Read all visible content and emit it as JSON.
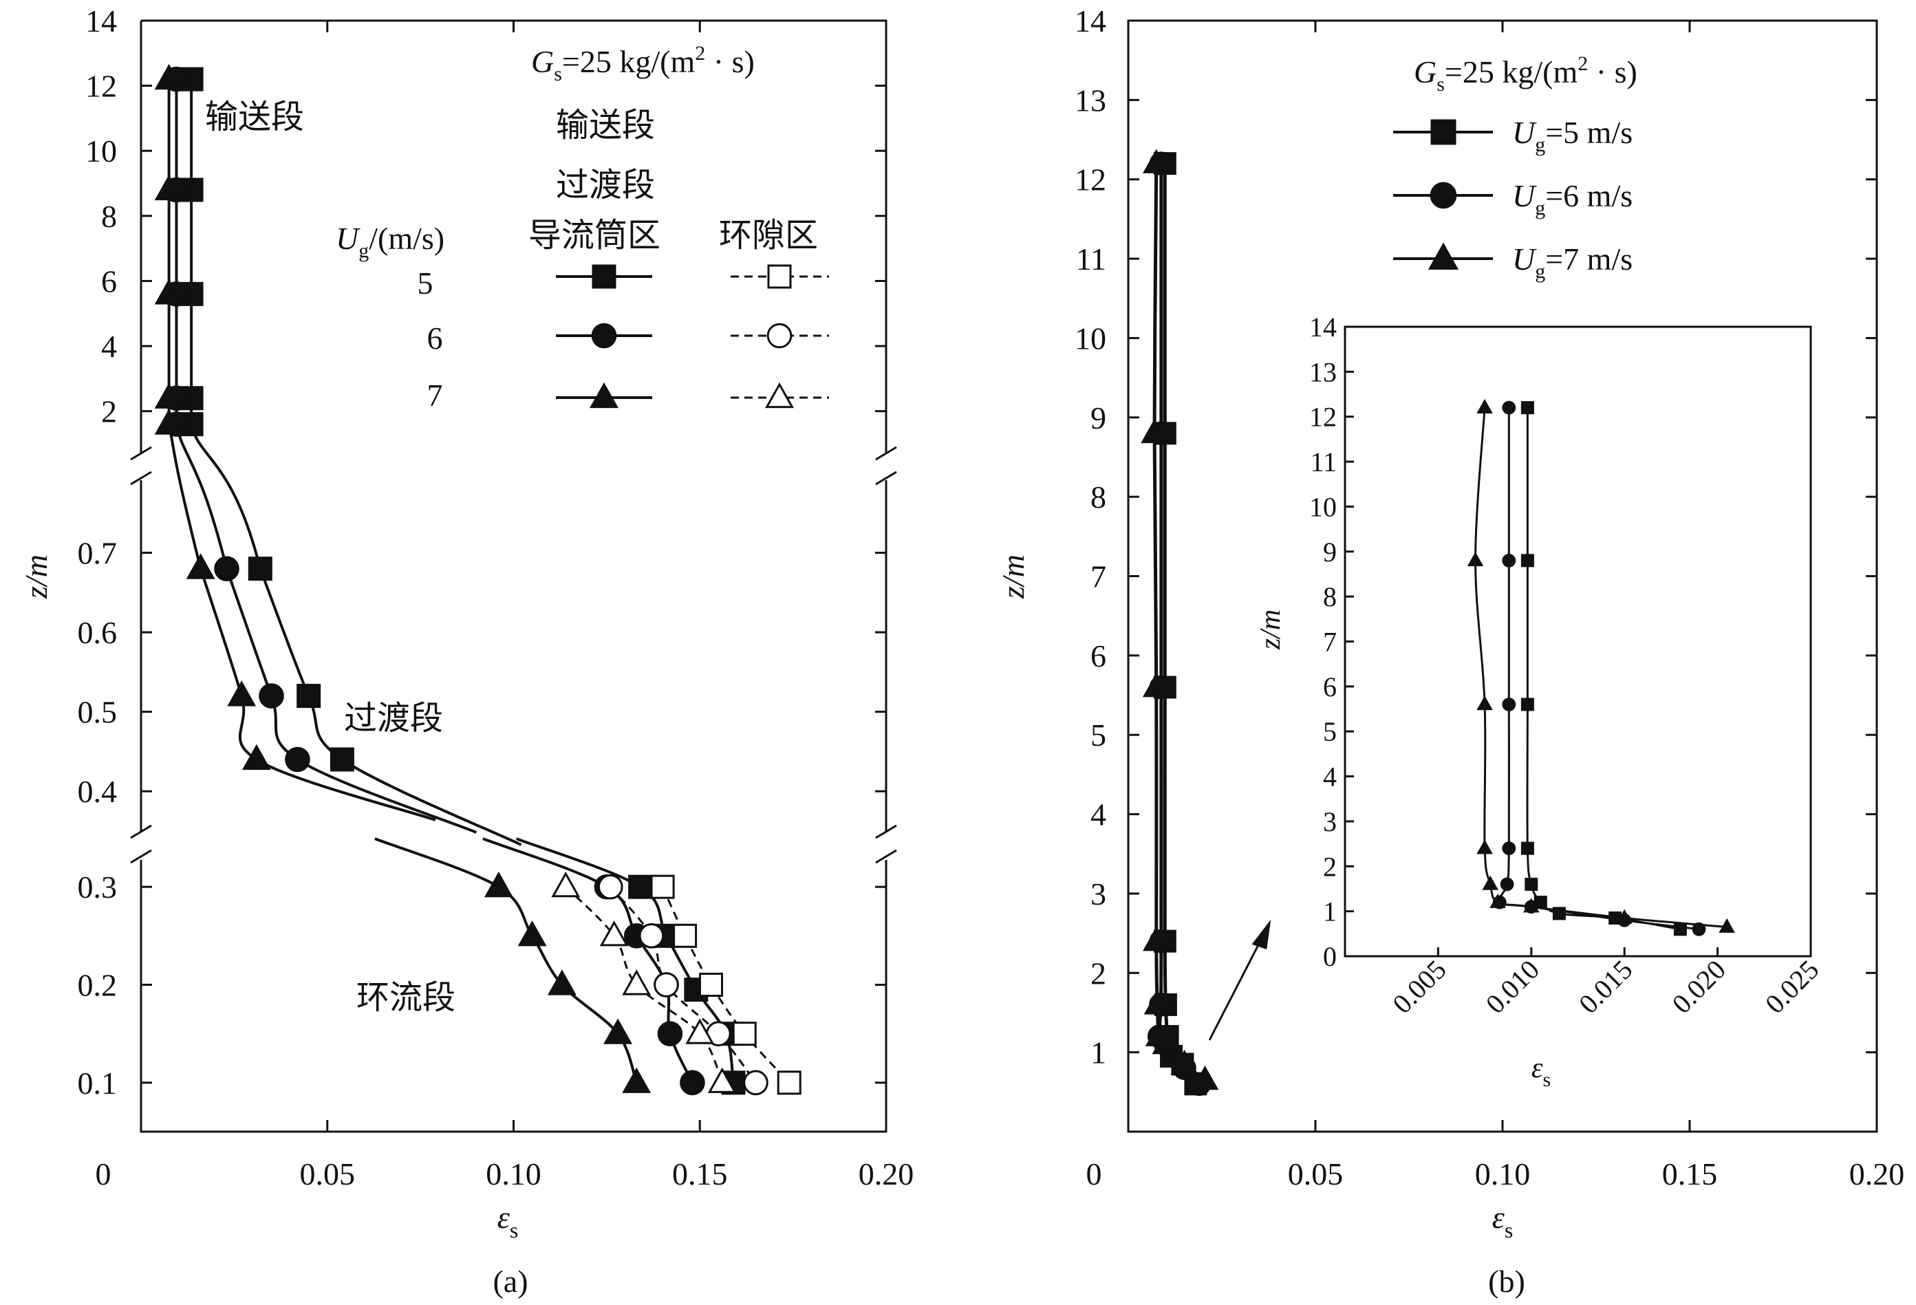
{
  "chart_data": [
    {
      "panel": "a",
      "type": "line",
      "caption": "(a)",
      "xlabel_sym": "ε",
      "xlabel_sub": "s",
      "ylabel": "z/m",
      "xlim": [
        0,
        0.2
      ],
      "x_ticks": [
        "0",
        "0.05",
        "0.10",
        "0.15",
        "0.20"
      ],
      "y_axis_broken": true,
      "y_segments": [
        {
          "range": [
            1,
            14
          ],
          "ticks": [
            "2",
            "4",
            "6",
            "8",
            "10",
            "12",
            "14"
          ]
        },
        {
          "range": [
            0.35,
            0.8
          ],
          "ticks": [
            "0.4",
            "0.5",
            "0.6",
            "0.7"
          ]
        },
        {
          "range": [
            0.05,
            0.35
          ],
          "ticks": [
            "0.1",
            "0.2",
            "0.3"
          ]
        }
      ],
      "annotations": {
        "conveying": "输送段",
        "transition": "过渡段",
        "circulation": "环流段"
      },
      "legend": {
        "condition_prefix": "G",
        "condition_sub": "s",
        "condition_value": "=25 kg/(m",
        "condition_sup": "2",
        "condition_tail": " · s)",
        "title_line1": "输送段",
        "title_line2": "过渡段",
        "ug_header": "U",
        "ug_sub": "g",
        "ug_unit": "/(m/s)",
        "col_draft": "导流筒区",
        "col_annulus": "环隙区",
        "velocities": [
          "5",
          "6",
          "7"
        ]
      },
      "series": [
        {
          "name": "5 m/s draft tube",
          "marker": "square",
          "filled": true,
          "points": [
            [
              0.0135,
              12.2
            ],
            [
              0.0135,
              8.8
            ],
            [
              0.0135,
              5.6
            ],
            [
              0.0135,
              2.4
            ],
            [
              0.0135,
              1.6
            ],
            [
              0.032,
              0.68
            ],
            [
              0.045,
              0.52
            ],
            [
              0.054,
              0.44
            ],
            [
              0.134,
              0.3
            ],
            [
              0.141,
              0.25
            ],
            [
              0.149,
              0.195
            ],
            [
              0.157,
              0.15
            ],
            [
              0.159,
              0.1
            ]
          ]
        },
        {
          "name": "6 m/s draft tube",
          "marker": "circle",
          "filled": true,
          "points": [
            [
              0.0095,
              12.2
            ],
            [
              0.0095,
              8.8
            ],
            [
              0.0095,
              5.6
            ],
            [
              0.0095,
              2.4
            ],
            [
              0.0095,
              1.6
            ],
            [
              0.023,
              0.68
            ],
            [
              0.035,
              0.52
            ],
            [
              0.042,
              0.44
            ],
            [
              0.125,
              0.3
            ],
            [
              0.133,
              0.25
            ],
            [
              0.141,
              0.2
            ],
            [
              0.142,
              0.15
            ],
            [
              0.148,
              0.1
            ]
          ]
        },
        {
          "name": "7 m/s draft tube",
          "marker": "triangle",
          "filled": true,
          "points": [
            [
              0.0075,
              12.2
            ],
            [
              0.0075,
              8.8
            ],
            [
              0.0075,
              5.6
            ],
            [
              0.0075,
              2.4
            ],
            [
              0.0075,
              1.6
            ],
            [
              0.016,
              0.68
            ],
            [
              0.027,
              0.52
            ],
            [
              0.031,
              0.44
            ],
            [
              0.096,
              0.3
            ],
            [
              0.105,
              0.25
            ],
            [
              0.113,
              0.2
            ],
            [
              0.128,
              0.15
            ],
            [
              0.133,
              0.1
            ]
          ]
        },
        {
          "name": "5 m/s annulus",
          "marker": "square",
          "filled": false,
          "points": [
            [
              0.14,
              0.3
            ],
            [
              0.146,
              0.25
            ],
            [
              0.153,
              0.2
            ],
            [
              0.162,
              0.15
            ],
            [
              0.174,
              0.1
            ]
          ]
        },
        {
          "name": "6 m/s annulus",
          "marker": "circle",
          "filled": false,
          "points": [
            [
              0.126,
              0.3
            ],
            [
              0.137,
              0.25
            ],
            [
              0.141,
              0.2
            ],
            [
              0.155,
              0.15
            ],
            [
              0.165,
              0.1
            ]
          ]
        },
        {
          "name": "7 m/s annulus",
          "marker": "triangle",
          "filled": false,
          "points": [
            [
              0.114,
              0.3
            ],
            [
              0.127,
              0.25
            ],
            [
              0.133,
              0.2
            ],
            [
              0.15,
              0.15
            ],
            [
              0.156,
              0.1
            ]
          ]
        }
      ]
    },
    {
      "panel": "b",
      "type": "line",
      "caption": "(b)",
      "xlabel_sym": "ε",
      "xlabel_sub": "s",
      "ylabel": "z/m",
      "xlim": [
        0,
        0.2
      ],
      "ylim": [
        0,
        14
      ],
      "x_ticks": [
        "0",
        "0.05",
        "0.10",
        "0.15",
        "0.20"
      ],
      "y_ticks": [
        "1",
        "2",
        "3",
        "4",
        "5",
        "6",
        "7",
        "8",
        "9",
        "10",
        "11",
        "12",
        "13",
        "14"
      ],
      "legend": {
        "condition_prefix": "G",
        "condition_sub": "s",
        "condition_value": "=25 kg/(m",
        "condition_sup": "2",
        "condition_tail": " · s)",
        "entries": [
          {
            "prefix": "U",
            "sub": "g",
            "value": "=5 m/s",
            "marker": "square"
          },
          {
            "prefix": "U",
            "sub": "g",
            "value": "=6 m/s",
            "marker": "circle"
          },
          {
            "prefix": "U",
            "sub": "g",
            "value": "=7 m/s",
            "marker": "triangle"
          }
        ]
      },
      "series": [
        {
          "name": "Ug=5 m/s",
          "marker": "square",
          "points": [
            [
              0.0098,
              12.2
            ],
            [
              0.0098,
              8.8
            ],
            [
              0.0098,
              5.6
            ],
            [
              0.0098,
              2.4
            ],
            [
              0.01,
              1.6
            ],
            [
              0.0105,
              1.2
            ],
            [
              0.0115,
              0.95
            ],
            [
              0.0145,
              0.85
            ],
            [
              0.018,
              0.6
            ]
          ]
        },
        {
          "name": "Ug=6 m/s",
          "marker": "circle",
          "points": [
            [
              0.0088,
              12.2
            ],
            [
              0.0088,
              8.8
            ],
            [
              0.0088,
              5.6
            ],
            [
              0.0088,
              2.4
            ],
            [
              0.0087,
              1.6
            ],
            [
              0.0083,
              1.2
            ],
            [
              0.01,
              1.1
            ],
            [
              0.015,
              0.8
            ],
            [
              0.019,
              0.6
            ]
          ]
        },
        {
          "name": "Ug=7 m/s",
          "marker": "triangle",
          "points": [
            [
              0.0075,
              12.2
            ],
            [
              0.007,
              8.8
            ],
            [
              0.0075,
              5.6
            ],
            [
              0.0075,
              2.4
            ],
            [
              0.0078,
              1.6
            ],
            [
              0.0082,
              1.2
            ],
            [
              0.01,
              1.1
            ],
            [
              0.015,
              0.85
            ],
            [
              0.0205,
              0.65
            ]
          ]
        }
      ],
      "inset": {
        "xlabel_sym": "ε",
        "xlabel_sub": "s",
        "ylabel": "z/m",
        "xlim": [
          0,
          0.025
        ],
        "ylim": [
          0,
          14
        ],
        "x_ticks": [
          "0.005",
          "0.010",
          "0.015",
          "0.020",
          "0.025"
        ],
        "y_ticks": [
          "0",
          "1",
          "2",
          "3",
          "4",
          "5",
          "6",
          "7",
          "8",
          "9",
          "10",
          "11",
          "12",
          "13",
          "14"
        ]
      }
    }
  ]
}
